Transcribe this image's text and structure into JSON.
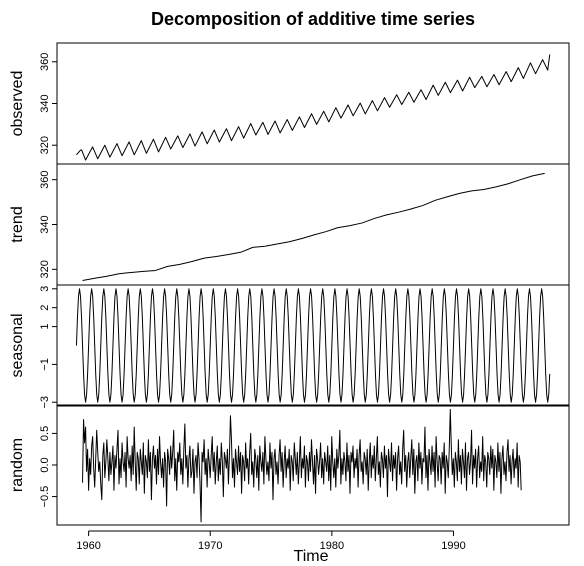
{
  "chart_data": {
    "type": "line",
    "title": "Decomposition of additive time series",
    "xlabel": "Time",
    "x_range": [
      1959,
      1998
    ],
    "x_ticks": [
      1960,
      1970,
      1980,
      1990
    ],
    "x_tick_labels": [
      "1960",
      "1970",
      "1980",
      "1990"
    ],
    "grid": false,
    "legend": "none",
    "line_color": "#000000",
    "panels": [
      {
        "name": "observed",
        "ylabel": "observed",
        "ylim": [
          311,
          369
        ],
        "y_ticks": [
          320,
          340,
          360
        ],
        "y_tick_labels": [
          "320",
          "340",
          "360"
        ],
        "x": [
          1959.0,
          1959.33,
          1959.42,
          1959.75,
          1960.33,
          1960.75,
          1961.33,
          1961.75,
          1962.33,
          1962.75,
          1963.33,
          1963.75,
          1964.33,
          1964.75,
          1965.33,
          1965.75,
          1966.33,
          1966.75,
          1967.33,
          1967.75,
          1968.33,
          1968.75,
          1969.33,
          1969.75,
          1970.33,
          1970.75,
          1971.33,
          1971.75,
          1972.33,
          1972.75,
          1973.33,
          1973.75,
          1974.33,
          1974.75,
          1975.33,
          1975.75,
          1976.33,
          1976.75,
          1977.33,
          1977.75,
          1978.33,
          1978.75,
          1979.33,
          1979.75,
          1980.33,
          1980.75,
          1981.33,
          1981.75,
          1982.33,
          1982.75,
          1983.33,
          1983.75,
          1984.33,
          1984.75,
          1985.33,
          1985.75,
          1986.33,
          1986.75,
          1987.33,
          1987.75,
          1988.33,
          1988.75,
          1989.33,
          1989.75,
          1990.33,
          1990.75,
          1991.33,
          1991.75,
          1992.33,
          1992.75,
          1993.33,
          1993.75,
          1994.33,
          1994.75,
          1995.33,
          1995.75,
          1996.33,
          1996.75,
          1997.33,
          1997.75,
          1997.92
        ],
        "values": [
          315.4,
          317.6,
          317.8,
          312.9,
          319.2,
          313.5,
          320.0,
          314.3,
          320.8,
          315.0,
          321.6,
          315.4,
          322.2,
          316.1,
          322.9,
          316.8,
          323.8,
          318.2,
          324.5,
          318.9,
          325.4,
          319.6,
          326.4,
          320.7,
          327.3,
          321.5,
          327.9,
          322.2,
          328.9,
          323.4,
          330.4,
          324.9,
          331.0,
          325.2,
          331.6,
          325.9,
          332.3,
          327.1,
          333.6,
          328.5,
          335.1,
          330.0,
          336.3,
          331.2,
          338.0,
          333.0,
          339.3,
          334.1,
          340.2,
          335.0,
          341.4,
          336.5,
          342.8,
          338.2,
          344.2,
          339.5,
          345.4,
          340.6,
          346.6,
          341.9,
          348.8,
          343.9,
          350.2,
          345.2,
          351.2,
          346.0,
          352.6,
          347.6,
          353.0,
          348.0,
          353.9,
          349.0,
          355.3,
          350.5,
          357.2,
          352.0,
          359.5,
          354.3,
          361.0,
          356.0,
          363.5
        ]
      },
      {
        "name": "trend",
        "ylabel": "trend",
        "ylim": [
          313,
          367
        ],
        "y_ticks": [
          320,
          340,
          360
        ],
        "y_tick_labels": [
          "320",
          "340",
          "360"
        ],
        "x": [
          1959.5,
          1960.5,
          1961.5,
          1962.5,
          1963.5,
          1964.5,
          1965.5,
          1966.5,
          1967.5,
          1968.5,
          1969.5,
          1970.5,
          1971.5,
          1972.5,
          1973.5,
          1974.5,
          1975.5,
          1976.5,
          1977.5,
          1978.5,
          1979.5,
          1980.5,
          1981.5,
          1982.5,
          1983.5,
          1984.5,
          1985.5,
          1986.5,
          1987.5,
          1988.5,
          1989.5,
          1990.5,
          1991.5,
          1992.5,
          1993.5,
          1994.5,
          1995.5,
          1996.5,
          1997.5
        ],
        "values": [
          315.0,
          316.0,
          316.9,
          318.0,
          318.6,
          319.1,
          319.5,
          321.3,
          322.2,
          323.5,
          325.0,
          325.7,
          326.6,
          327.6,
          329.8,
          330.3,
          331.3,
          332.3,
          333.7,
          335.3,
          336.8,
          338.6,
          339.5,
          340.7,
          342.7,
          344.3,
          345.5,
          346.9,
          348.5,
          350.8,
          352.4,
          353.9,
          355.0,
          355.6,
          356.8,
          358.2,
          360.0,
          361.7,
          362.8
        ]
      },
      {
        "name": "seasonal",
        "ylabel": "seasonal",
        "ylim": [
          -3.2,
          3.2
        ],
        "y_ticks": [
          -3,
          -1,
          1,
          2,
          3
        ],
        "y_tick_labels": [
          "−3",
          "−1",
          "1",
          "2",
          "3"
        ],
        "start": 1959.0,
        "end": 1997.92,
        "amplitude": 3.0,
        "period_years": 1
      },
      {
        "name": "random",
        "ylabel": "random",
        "ylim": [
          -0.95,
          0.95
        ],
        "y_ticks": [
          -0.5,
          0.0,
          0.5
        ],
        "y_tick_labels": [
          "−0.5",
          "0.0",
          "0.5"
        ],
        "start": 1959.5,
        "step": 0.0833,
        "values": [
          -0.28,
          0.72,
          0.35,
          0.6,
          -0.1,
          0.25,
          -0.4,
          0.1,
          -0.15,
          0.3,
          0.45,
          -0.05,
          -0.35,
          0.1,
          0.55,
          0.2,
          -0.1,
          0.05,
          -0.3,
          -0.55,
          0.15,
          0.35,
          -0.2,
          0.05,
          0.4,
          0.1,
          -0.25,
          0.2,
          -0.15,
          0.05,
          0.3,
          -0.4,
          0.15,
          -0.05,
          0.25,
          0.55,
          -0.3,
          0.1,
          -0.2,
          0.35,
          0.05,
          -0.1,
          0.2,
          -0.35,
          0.45,
          0.1,
          -0.05,
          0.15,
          -0.25,
          0.3,
          -0.15,
          0.6,
          0.05,
          -0.4,
          0.2,
          0.1,
          -0.3,
          0.25,
          0.05,
          -0.15,
          0.35,
          -0.45,
          0.15,
          0.05,
          -0.2,
          0.4,
          -0.1,
          0.2,
          -0.55,
          0.1,
          0.3,
          -0.05,
          0.15,
          -0.3,
          0.25,
          -0.15,
          0.45,
          0.05,
          -0.2,
          0.1,
          -0.35,
          0.2,
          0.05,
          -0.65,
          0.25,
          0.1,
          -0.15,
          0.3,
          -0.05,
          0.2,
          0.55,
          -0.25,
          0.1,
          -0.4,
          0.2,
          0.05,
          0.35,
          -0.15,
          0.1,
          -0.3,
          0.25,
          0.65,
          -0.05,
          0.15,
          -0.35,
          0.1,
          0.3,
          -0.2,
          -0.1,
          0.25,
          -0.45,
          0.05,
          0.15,
          -0.2,
          0.35,
          0.1,
          -0.3,
          -0.9,
          0.2,
          0.05,
          0.4,
          -0.15,
          0.1,
          -0.35,
          0.25,
          0.05,
          -0.2,
          0.15,
          0.45,
          -0.1,
          0.2,
          -0.3,
          0.05,
          0.3,
          -0.25,
          0.1,
          -0.15,
          0.35,
          0.05,
          -0.5,
          0.2,
          0.1,
          -0.05,
          0.25,
          -0.3,
          0.15,
          0.78,
          0.4,
          -0.2,
          0.1,
          -0.35,
          0.25,
          0.05,
          -0.15,
          0.3,
          -0.1,
          0.2,
          -0.45,
          0.15,
          0.05,
          -0.25,
          0.35,
          -0.05,
          0.1,
          -0.3,
          0.2,
          0.5,
          -0.15,
          0.05,
          -0.35,
          0.25,
          0.1,
          -0.2,
          0.15,
          -0.4,
          0.3,
          0.05,
          -0.1,
          0.2,
          -0.3,
          0.45,
          0.1,
          -0.15,
          0.05,
          -0.25,
          0.35,
          -0.05,
          0.2,
          -0.55,
          0.1,
          0.25,
          -0.15,
          0.05,
          -0.3,
          0.15,
          0.4,
          -0.1,
          0.2,
          -0.35,
          0.05,
          0.3,
          -0.2,
          0.1,
          -0.05,
          0.25,
          -0.4,
          0.15,
          0.05,
          -0.25,
          0.35,
          0.1,
          -0.15,
          0.2,
          -0.3,
          0.05,
          0.45,
          -0.2,
          0.1,
          -0.05,
          0.3,
          -0.35,
          0.15,
          0.05,
          -0.25,
          0.2,
          -0.1,
          0.4,
          0.05,
          -0.3,
          0.15,
          -0.45,
          0.25,
          0.1,
          -0.15,
          0.05,
          0.35,
          -0.2,
          0.1,
          -0.3,
          0.2,
          0.05,
          -0.1,
          0.3,
          -0.25,
          0.15,
          -0.4,
          0.45,
          0.05,
          -0.2,
          0.1,
          -0.35,
          0.25,
          -0.05,
          0.15,
          0.55,
          -0.3,
          0.1,
          -0.15,
          0.2,
          0.05,
          -0.25,
          0.35,
          -0.1,
          0.15,
          -0.45,
          0.2,
          0.05,
          0.3,
          -0.2,
          0.1,
          -0.05,
          0.25,
          -0.35,
          0.15,
          0.4,
          -0.1,
          0.05,
          -0.3,
          0.2,
          0.1,
          -0.15,
          0.25,
          -0.4,
          0.05,
          0.35,
          -0.2,
          0.15,
          -0.05,
          0.3,
          -0.25,
          0.1,
          0.45,
          -0.15,
          0.05,
          -0.35,
          0.2,
          0.1,
          -0.2,
          0.3,
          -0.05,
          0.15,
          -0.5,
          0.25,
          0.05,
          -0.1,
          0.35,
          -0.25,
          0.15,
          -0.05,
          0.2,
          -0.4,
          0.1,
          0.3,
          -0.15,
          0.05,
          -0.3,
          0.25,
          0.55,
          -0.1,
          0.15,
          -0.35,
          0.05,
          0.2,
          -0.2,
          0.1,
          0.4,
          -0.15,
          0.25,
          -0.45,
          0.05,
          0.15,
          -0.25,
          0.35,
          -0.05,
          0.2,
          -0.3,
          0.1,
          0.05,
          0.6,
          -0.2,
          0.15,
          -0.4,
          0.25,
          0.05,
          -0.15,
          0.3,
          -0.1,
          0.2,
          -0.35,
          0.45,
          0.05,
          -0.25,
          0.15,
          0.1,
          -0.3,
          0.2,
          -0.05,
          0.35,
          -0.45,
          0.15,
          0.05,
          -0.2,
          0.25,
          0.88,
          0.3,
          -0.15,
          0.1,
          -0.35,
          0.2,
          0.05,
          -0.25,
          0.4,
          -0.1,
          0.15,
          -0.3,
          0.25,
          0.05,
          -0.2,
          0.35,
          -0.4,
          0.1,
          0.2,
          -0.15,
          0.05,
          0.55,
          -0.3,
          0.15,
          -0.05,
          0.25,
          -0.35,
          0.1,
          0.3,
          -0.2,
          0.05,
          -0.1,
          0.45,
          -0.25,
          0.15,
          0.05,
          -0.35,
          0.2,
          0.1,
          -0.15,
          0.3,
          -0.05,
          0.25,
          -0.4,
          0.15,
          0.05,
          -0.2,
          0.35,
          -0.1,
          0.2,
          -0.45,
          0.1,
          0.3,
          -0.15,
          0.05,
          -0.25,
          0.2,
          0.4,
          -0.1,
          0.15,
          -0.3,
          0.05,
          0.25,
          -0.2,
          0.1,
          -0.05,
          0.35,
          -0.35,
          0.15,
          0.05,
          -0.4
        ]
      }
    ]
  }
}
